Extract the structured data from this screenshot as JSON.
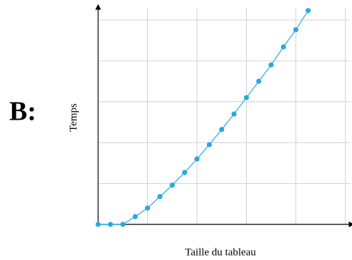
{
  "chart_data": {
    "type": "line",
    "panel_label": "B:",
    "xlabel": "Taille du tableau",
    "ylabel": "Temps",
    "x": [
      0,
      0.25,
      0.5,
      0.75,
      1,
      1.25,
      1.5,
      1.75,
      2,
      2.25,
      2.5,
      2.75,
      3,
      3.25,
      3.5,
      3.75,
      4,
      4.25
    ],
    "series": [
      {
        "color": "#29a8e0",
        "values": [
          0,
          0,
          0,
          0.19,
          0.4,
          0.68,
          0.96,
          1.27,
          1.6,
          1.95,
          2.32,
          2.7,
          3.1,
          3.5,
          3.9,
          4.34,
          4.76,
          5.23
        ]
      }
    ],
    "xlim": [
      0,
      5.1
    ],
    "ylim": [
      0,
      5.25
    ],
    "xticks": [
      0,
      1,
      2,
      3,
      4,
      5
    ],
    "yticks": [
      0,
      1,
      2,
      3,
      4,
      5
    ],
    "grid": true
  }
}
